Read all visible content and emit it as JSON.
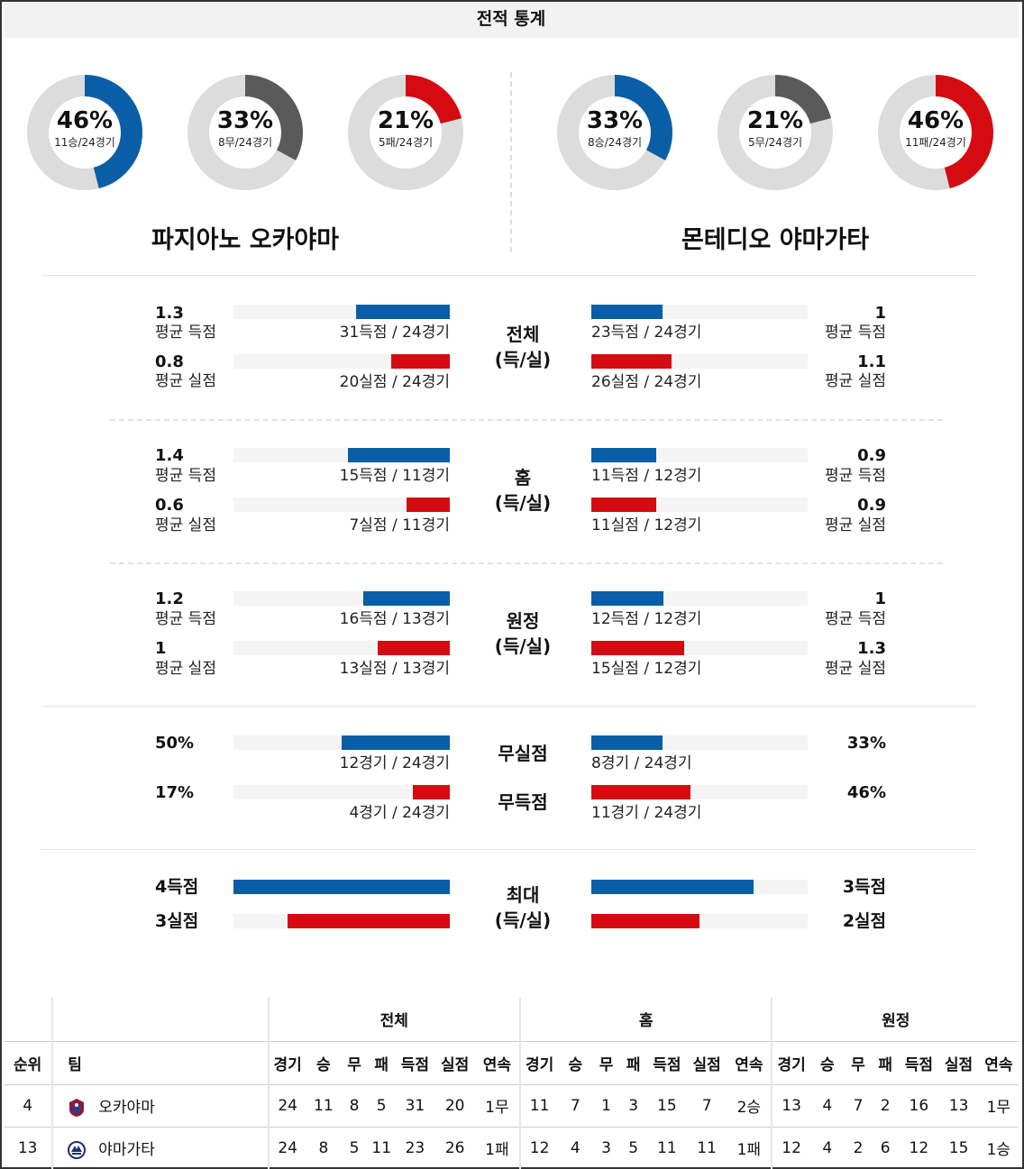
{
  "title": "전적 통계",
  "colors": {
    "blue": "#0a5ea8",
    "red": "#d40c12",
    "gray": "#5a5a5a",
    "track": "#dcdcdc"
  },
  "teams": {
    "home": {
      "name": "파지아노 오카야마",
      "donuts": [
        {
          "pct": "46%",
          "sub": "11승/24경기",
          "fraction": 0.46,
          "color": "#0a5ea8"
        },
        {
          "pct": "33%",
          "sub": "8무/24경기",
          "fraction": 0.33,
          "color": "#5a5a5a"
        },
        {
          "pct": "21%",
          "sub": "5패/24경기",
          "fraction": 0.21,
          "color": "#d40c12"
        }
      ]
    },
    "away": {
      "name": "몬테디오 야마가타",
      "donuts": [
        {
          "pct": "33%",
          "sub": "8승/24경기",
          "fraction": 0.33,
          "color": "#0a5ea8"
        },
        {
          "pct": "21%",
          "sub": "5무/24경기",
          "fraction": 0.21,
          "color": "#5a5a5a"
        },
        {
          "pct": "46%",
          "sub": "11패/24경기",
          "fraction": 0.46,
          "color": "#d40c12"
        }
      ]
    }
  },
  "sections": [
    {
      "label1": "전체",
      "label2": "(득/실)",
      "home": {
        "scored": {
          "val": "1.3",
          "lbl": "평균 득점",
          "cap": "31득점 / 24경기",
          "fraction": 0.433
        },
        "conceded": {
          "val": "0.8",
          "lbl": "평균 실점",
          "cap": "20실점 / 24경기",
          "fraction": 0.27
        }
      },
      "away": {
        "scored": {
          "val": "1",
          "lbl": "평균 득점",
          "cap": "23득점 / 24경기",
          "fraction": 0.33
        },
        "conceded": {
          "val": "1.1",
          "lbl": "평균 실점",
          "cap": "26실점 / 24경기",
          "fraction": 0.37
        }
      }
    },
    {
      "label1": "홈",
      "label2": "(득/실)",
      "home": {
        "scored": {
          "val": "1.4",
          "lbl": "평균 득점",
          "cap": "15득점 / 11경기",
          "fraction": 0.47
        },
        "conceded": {
          "val": "0.6",
          "lbl": "평균 실점",
          "cap": "7실점 / 11경기",
          "fraction": 0.2
        }
      },
      "away": {
        "scored": {
          "val": "0.9",
          "lbl": "평균 득점",
          "cap": "11득점 / 12경기",
          "fraction": 0.3
        },
        "conceded": {
          "val": "0.9",
          "lbl": "평균 실점",
          "cap": "11실점 / 12경기",
          "fraction": 0.3
        }
      }
    },
    {
      "label1": "원정",
      "label2": "(득/실)",
      "home": {
        "scored": {
          "val": "1.2",
          "lbl": "평균 득점",
          "cap": "16득점 / 13경기",
          "fraction": 0.4
        },
        "conceded": {
          "val": "1",
          "lbl": "평균 실점",
          "cap": "13실점 / 13경기",
          "fraction": 0.333
        }
      },
      "away": {
        "scored": {
          "val": "1",
          "lbl": "평균 득점",
          "cap": "12득점 / 12경기",
          "fraction": 0.333
        },
        "conceded": {
          "val": "1.3",
          "lbl": "평균 실점",
          "cap": "15실점 / 12경기",
          "fraction": 0.43
        }
      }
    }
  ],
  "misc": {
    "clean_sheet_label": "무실점",
    "no_goal_label": "무득점",
    "home": {
      "clean": {
        "val": "50%",
        "cap": "12경기 / 24경기",
        "fraction": 0.5
      },
      "nogoal": {
        "val": "17%",
        "cap": "4경기 / 24경기",
        "fraction": 0.17
      }
    },
    "away": {
      "clean": {
        "val": "33%",
        "cap": "8경기 / 24경기",
        "fraction": 0.33
      },
      "nogoal": {
        "val": "46%",
        "cap": "11경기 / 24경기",
        "fraction": 0.46
      }
    }
  },
  "max": {
    "label1": "최대",
    "label2": "(득/실)",
    "home": {
      "scored": "4득점",
      "conceded": "3실점",
      "scored_fraction": 1.0,
      "conceded_fraction": 0.75
    },
    "away": {
      "scored": "3득점",
      "conceded": "2실점",
      "scored_fraction": 0.75,
      "conceded_fraction": 0.5
    }
  },
  "standings": {
    "groups": [
      "전체",
      "홈",
      "원정"
    ],
    "rank_header": "순위",
    "team_header": "팀",
    "stat_headers": [
      "경기",
      "승",
      "무",
      "패",
      "득점",
      "실점",
      "연속"
    ],
    "rows": [
      {
        "rank": "4",
        "team": "오카야마",
        "all": [
          "24",
          "11",
          "8",
          "5",
          "31",
          "20",
          "1무"
        ],
        "home": [
          "11",
          "7",
          "1",
          "3",
          "15",
          "7",
          "2승"
        ],
        "away": [
          "13",
          "4",
          "7",
          "2",
          "16",
          "13",
          "1무"
        ]
      },
      {
        "rank": "13",
        "team": "야마가타",
        "all": [
          "24",
          "8",
          "5",
          "11",
          "23",
          "26",
          "1패"
        ],
        "home": [
          "12",
          "4",
          "3",
          "5",
          "11",
          "11",
          "1패"
        ],
        "away": [
          "12",
          "4",
          "2",
          "6",
          "12",
          "15",
          "1승"
        ]
      }
    ]
  }
}
